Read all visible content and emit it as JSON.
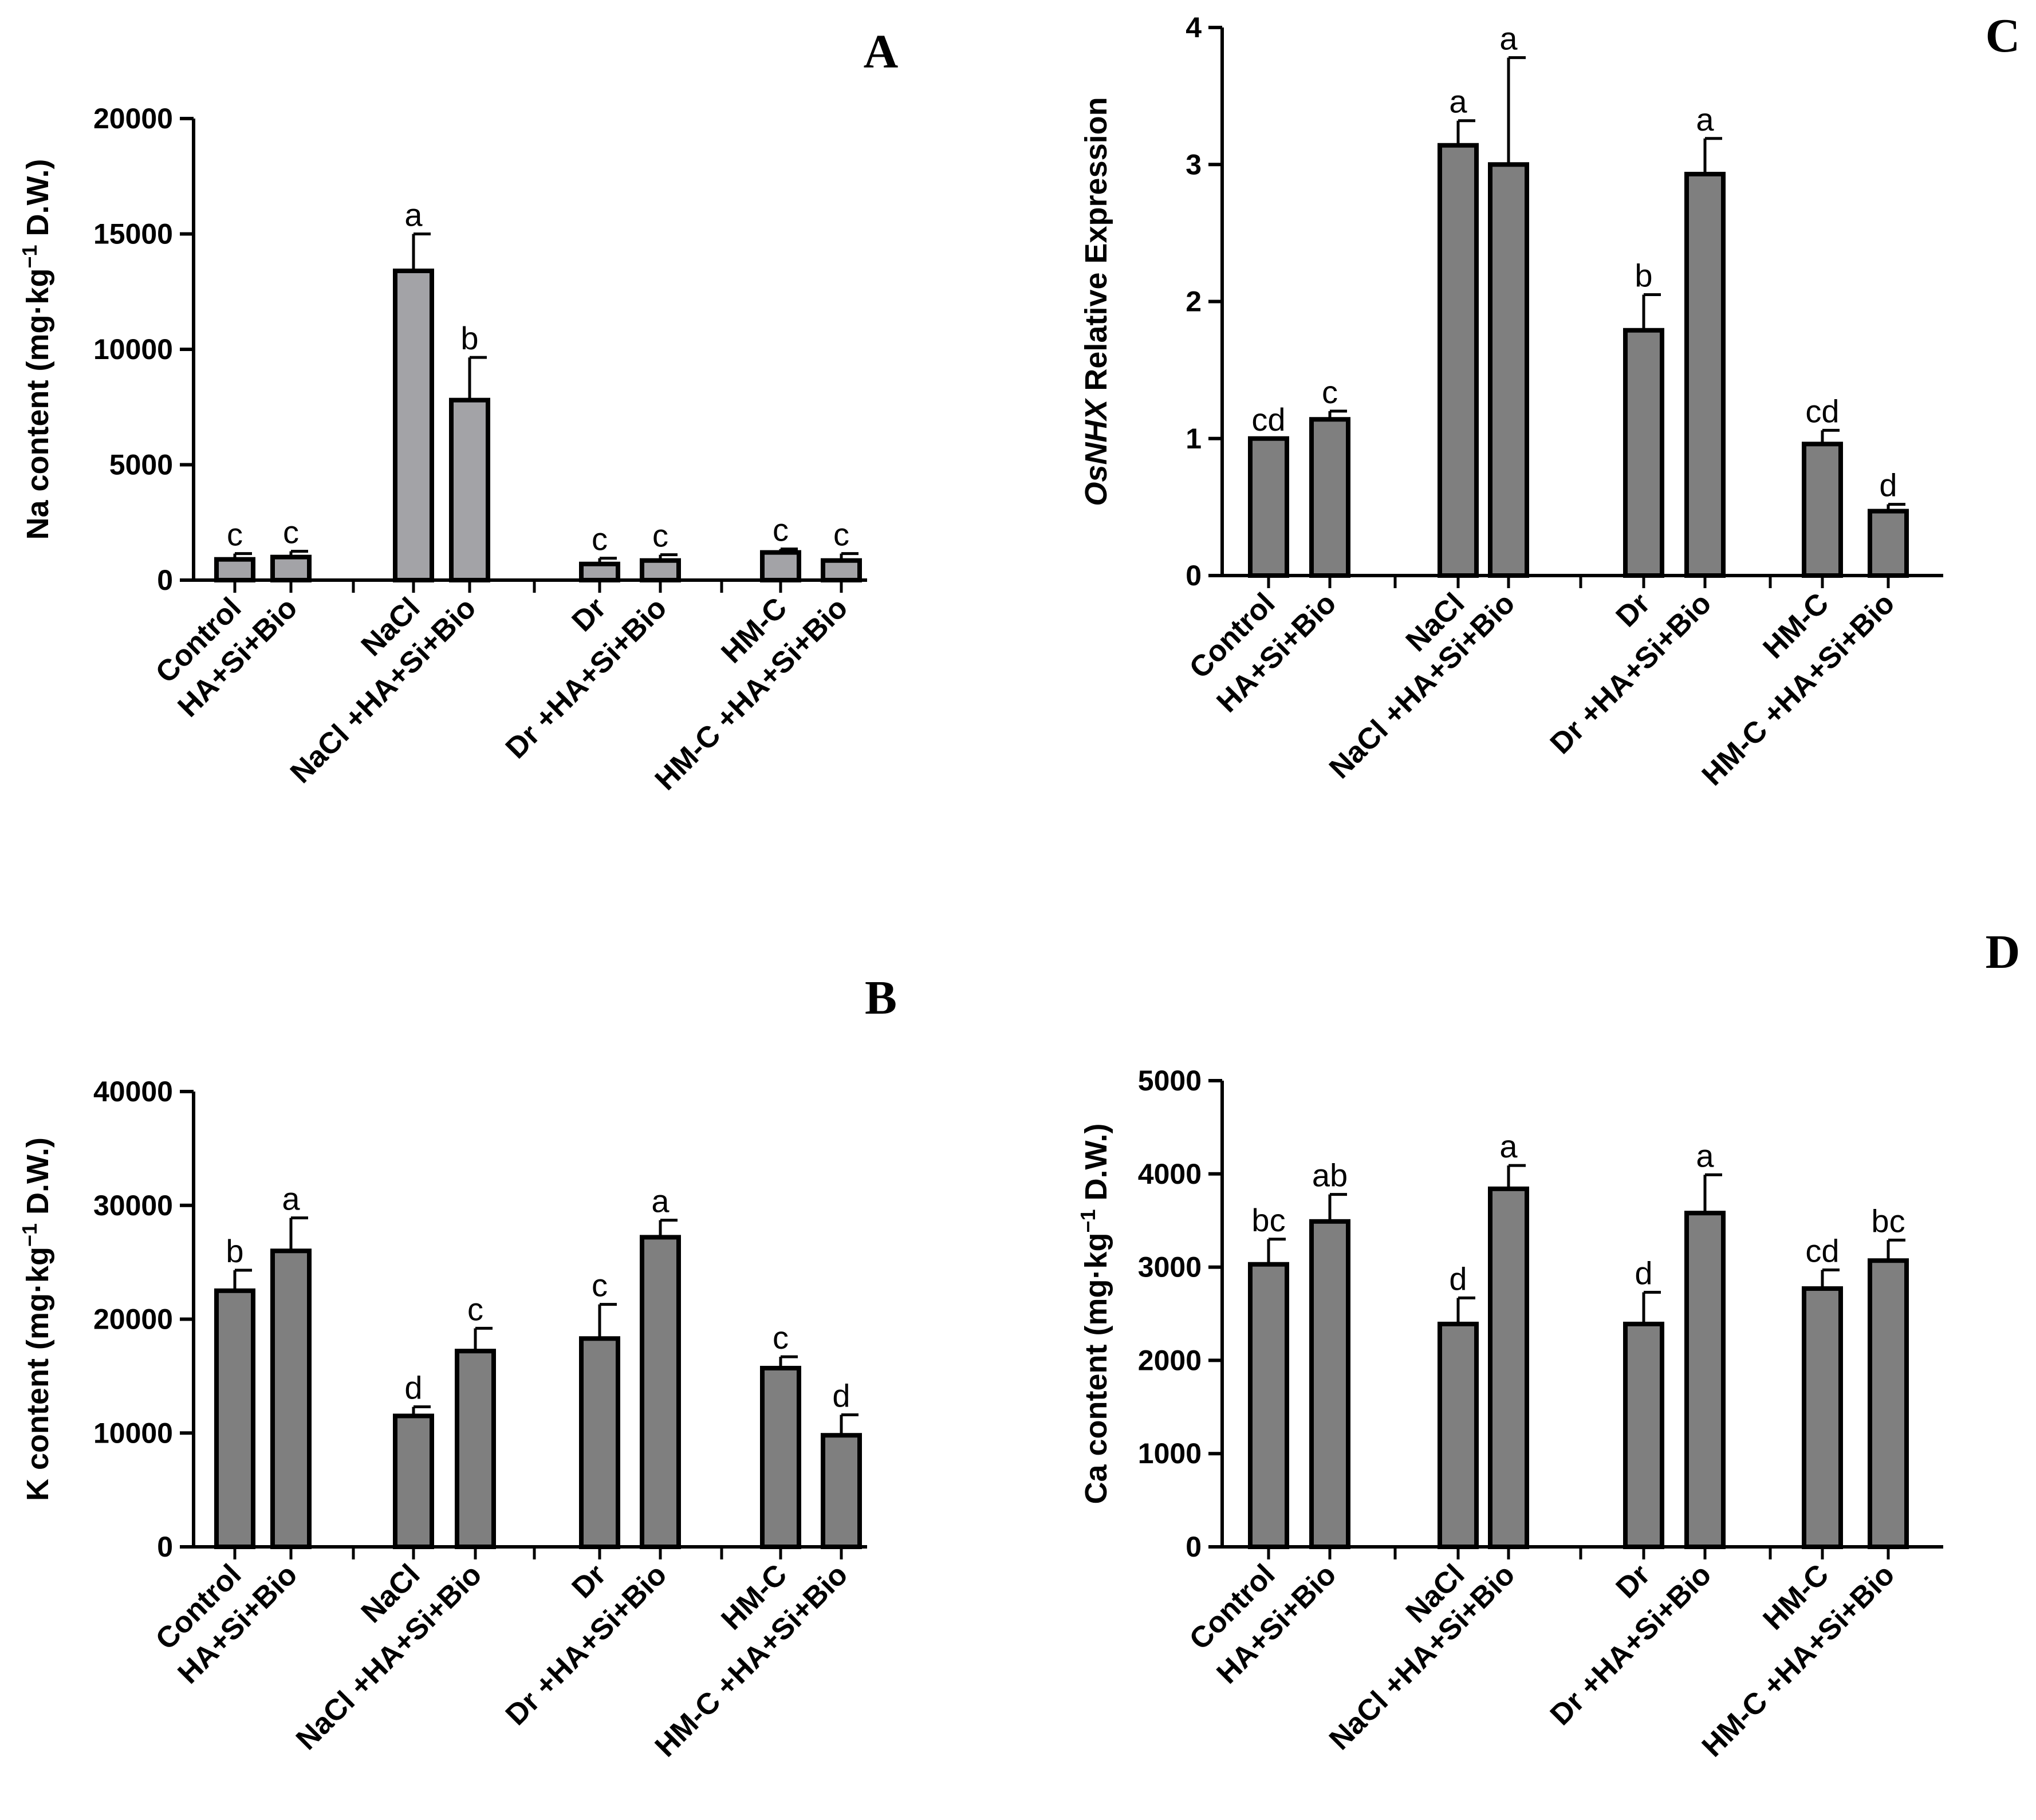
{
  "chart_data": [
    {
      "panel": "A",
      "type": "bar",
      "ylabel": "Na content (mg·kg",
      "ylabel_sup": "−1",
      "ylabel_tail": " D.W.)",
      "ylim": [
        0,
        20000
      ],
      "yticks": [
        0,
        5000,
        10000,
        15000,
        20000
      ],
      "bar_color": "#a3a3a7",
      "categories": [
        "Control",
        "HA+Si+Bio",
        "NaCl",
        "NaCl +HA+Si+Bio",
        "Dr",
        "Dr +HA+Si+Bio",
        "HM-C",
        "HM-C +HA+Si+Bio"
      ],
      "values": [
        900,
        1000,
        13400,
        7800,
        700,
        850,
        1200,
        850
      ],
      "errors": [
        250,
        250,
        1600,
        1850,
        250,
        250,
        150,
        300
      ],
      "significance": [
        "c",
        "c",
        "a",
        "b",
        "c",
        "c",
        "c",
        "c"
      ]
    },
    {
      "panel": "C",
      "type": "bar",
      "ylabel_italic": "OsNHX",
      "ylabel": " Relative Expression",
      "ylim": [
        0,
        4
      ],
      "yticks": [
        0,
        1,
        2,
        3,
        4
      ],
      "bar_color": "#7f7f7f",
      "categories": [
        "Control",
        "HA+Si+Bio",
        "NaCl",
        "NaCl +HA+Si+Bio",
        "Dr",
        "Dr +HA+Si+Bio",
        "HM-C",
        "HM-C +HA+Si+Bio"
      ],
      "values": [
        1.0,
        1.14,
        3.14,
        3.0,
        1.79,
        2.93,
        0.96,
        0.47
      ],
      "errors": [
        0.0,
        0.06,
        0.18,
        0.78,
        0.26,
        0.26,
        0.1,
        0.05
      ],
      "significance": [
        "cd",
        "c",
        "a",
        "a",
        "b",
        "a",
        "cd",
        "d"
      ]
    },
    {
      "panel": "B",
      "type": "bar",
      "ylabel": "K content (mg·kg",
      "ylabel_sup": "−1",
      "ylabel_tail": " D.W.)",
      "ylim": [
        0,
        40000
      ],
      "yticks": [
        0,
        10000,
        20000,
        30000,
        40000
      ],
      "bar_color": "#7f7f7f",
      "categories": [
        "Control",
        "HA+Si+Bio",
        "NaCl",
        "NaCl +HA+Si+Bio",
        "Dr",
        "Dr +HA+Si+Bio",
        "HM-C",
        "HM-C +HA+Si+Bio"
      ],
      "values": [
        22500,
        26000,
        11500,
        17200,
        18300,
        27200,
        15700,
        9800
      ],
      "errors": [
        1800,
        2900,
        800,
        2000,
        3000,
        1500,
        1000,
        1800
      ],
      "significance": [
        "b",
        "a",
        "d",
        "c",
        "c",
        "a",
        "c",
        "d"
      ]
    },
    {
      "panel": "D",
      "type": "bar",
      "ylabel": "Ca content (mg·kg",
      "ylabel_sup": "−1",
      "ylabel_tail": " D.W.)",
      "ylim": [
        0,
        5000
      ],
      "yticks": [
        0,
        1000,
        2000,
        3000,
        4000,
        5000
      ],
      "bar_color": "#7f7f7f",
      "categories": [
        "Control",
        "HA+Si+Bio",
        "NaCl",
        "NaCl +HA+Si+Bio",
        "Dr",
        "Dr +HA+Si+Bio",
        "HM-C",
        "HM-C +HA+Si+Bio"
      ],
      "values": [
        3030,
        3490,
        2390,
        3840,
        2390,
        3580,
        2770,
        3070
      ],
      "errors": [
        270,
        290,
        280,
        250,
        340,
        410,
        200,
        220
      ],
      "significance": [
        "bc",
        "ab",
        "d",
        "a",
        "d",
        "a",
        "cd",
        "bc"
      ]
    }
  ]
}
